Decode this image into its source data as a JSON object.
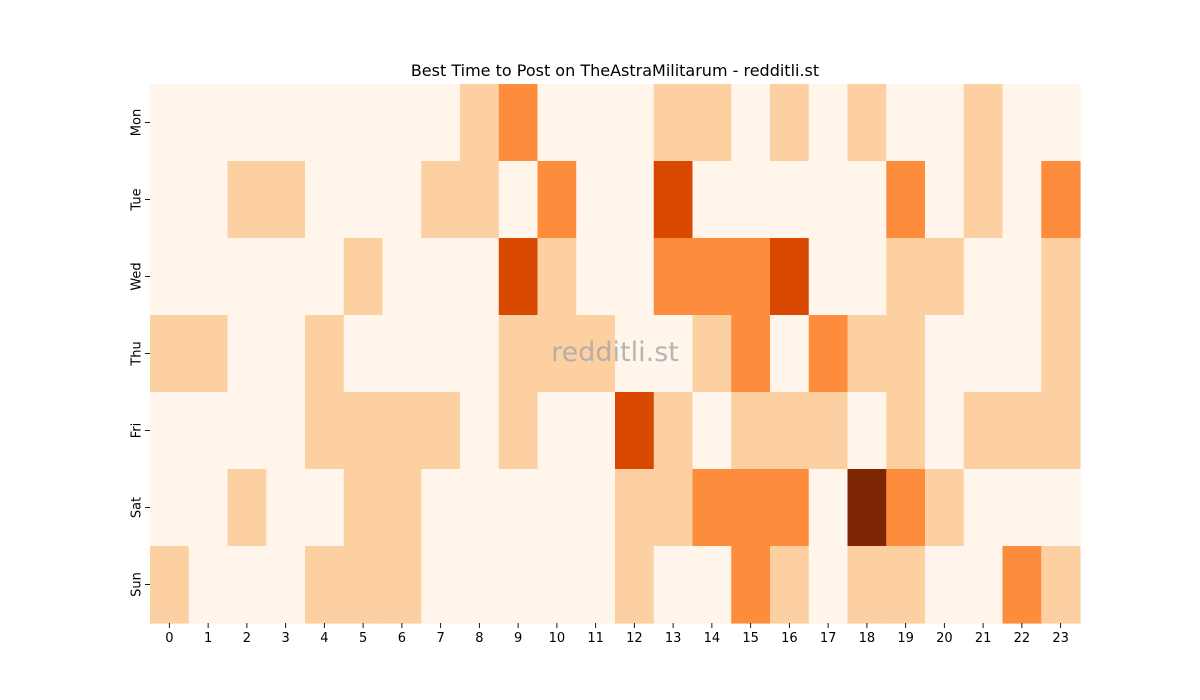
{
  "chart_data": {
    "type": "heatmap",
    "title": "Best Time to Post on TheAstraMilitarum - redditli.st",
    "xlabel": "",
    "ylabel": "",
    "watermark": "redditli.st",
    "x_categories": [
      "0",
      "1",
      "2",
      "3",
      "4",
      "5",
      "6",
      "7",
      "8",
      "9",
      "10",
      "11",
      "12",
      "13",
      "14",
      "15",
      "16",
      "17",
      "18",
      "19",
      "20",
      "21",
      "22",
      "23"
    ],
    "y_categories": [
      "Mon",
      "Tue",
      "Wed",
      "Thu",
      "Fri",
      "Sat",
      "Sun"
    ],
    "values": [
      [
        0,
        0,
        0,
        0,
        0,
        0,
        0,
        0,
        1,
        2,
        0,
        0,
        0,
        1,
        1,
        0,
        1,
        0,
        1,
        0,
        0,
        1,
        0,
        0
      ],
      [
        0,
        0,
        1,
        1,
        0,
        0,
        0,
        1,
        1,
        0,
        2,
        0,
        0,
        3,
        0,
        0,
        0,
        0,
        0,
        2,
        0,
        1,
        0,
        2
      ],
      [
        0,
        0,
        0,
        0,
        0,
        1,
        0,
        0,
        0,
        3,
        1,
        0,
        0,
        2,
        2,
        2,
        3,
        0,
        0,
        1,
        1,
        0,
        0,
        1
      ],
      [
        1,
        1,
        0,
        0,
        1,
        0,
        0,
        0,
        0,
        1,
        1,
        1,
        0,
        0,
        1,
        2,
        0,
        2,
        1,
        1,
        0,
        0,
        0,
        1
      ],
      [
        0,
        0,
        0,
        0,
        1,
        1,
        1,
        1,
        0,
        1,
        0,
        0,
        3,
        1,
        0,
        1,
        1,
        1,
        0,
        1,
        0,
        1,
        1,
        1
      ],
      [
        0,
        0,
        1,
        0,
        0,
        1,
        1,
        0,
        0,
        0,
        0,
        0,
        1,
        1,
        2,
        2,
        2,
        0,
        4,
        2,
        1,
        0,
        0,
        0
      ],
      [
        1,
        0,
        0,
        0,
        1,
        1,
        1,
        0,
        0,
        0,
        0,
        0,
        1,
        0,
        0,
        2,
        1,
        0,
        1,
        1,
        0,
        0,
        2,
        1
      ]
    ],
    "value_range": [
      0,
      4
    ],
    "color_levels": [
      "#fff5eb",
      "#fdd0a2",
      "#fd8d3c",
      "#d94801",
      "#7f2704"
    ],
    "colorbar": false,
    "grid": false
  }
}
